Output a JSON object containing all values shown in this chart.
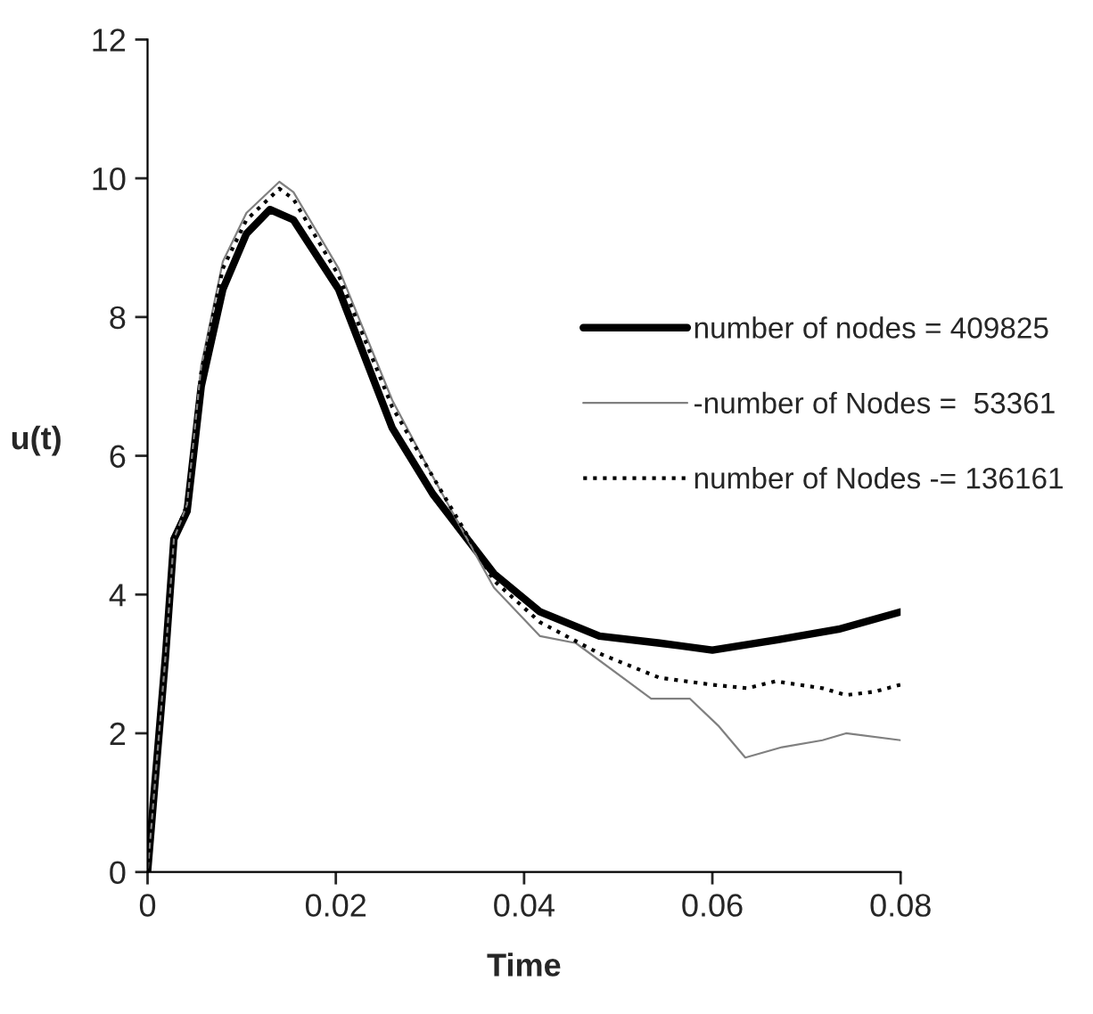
{
  "chart_data": {
    "type": "line",
    "xlabel": "Time",
    "ylabel": "u(t)",
    "xlim": [
      0,
      0.08
    ],
    "ylim": [
      0,
      12
    ],
    "xticks": [
      0,
      0.02,
      0.04,
      0.06,
      0.08
    ],
    "yticks": [
      0,
      2,
      4,
      6,
      8,
      10,
      12
    ],
    "grid": false,
    "legend": "right",
    "marker": "none",
    "series": [
      {
        "name": "number of nodes = 409825",
        "color": "#000000",
        "line_style": "solid",
        "x": [
          0,
          0.0019,
          0.0028,
          0.0042,
          0.0057,
          0.008,
          0.0105,
          0.013,
          0.0155,
          0.0203,
          0.026,
          0.0303,
          0.0368,
          0.0417,
          0.048,
          0.0544,
          0.06,
          0.067,
          0.0734,
          0.08
        ],
        "values": [
          0,
          3.1,
          4.8,
          5.2,
          7.0,
          8.4,
          9.2,
          9.55,
          9.4,
          8.4,
          6.4,
          5.45,
          4.3,
          3.75,
          3.4,
          3.3,
          3.2,
          3.35,
          3.5,
          3.75
        ]
      },
      {
        "name": "-number of Nodes =  53361",
        "color": "#808080",
        "line_style": "solid",
        "x": [
          0,
          0.0019,
          0.0028,
          0.0042,
          0.0057,
          0.008,
          0.0105,
          0.014,
          0.0155,
          0.0203,
          0.026,
          0.0303,
          0.0368,
          0.0417,
          0.0455,
          0.0535,
          0.0576,
          0.0607,
          0.0635,
          0.0674,
          0.0717,
          0.0742,
          0.08
        ],
        "values": [
          0,
          3.1,
          4.8,
          5.3,
          7.3,
          8.8,
          9.5,
          9.95,
          9.8,
          8.7,
          6.8,
          5.7,
          4.1,
          3.4,
          3.3,
          2.5,
          2.5,
          2.1,
          1.65,
          1.8,
          1.9,
          2.0,
          1.9
        ]
      },
      {
        "name": "number of Nodes -= 136161",
        "color": "#000000",
        "line_style": "dotted",
        "x": [
          0,
          0.0019,
          0.0028,
          0.0042,
          0.0057,
          0.008,
          0.0105,
          0.014,
          0.0155,
          0.0203,
          0.026,
          0.0303,
          0.0368,
          0.0417,
          0.048,
          0.0544,
          0.06,
          0.0637,
          0.0667,
          0.0717,
          0.0742,
          0.0772,
          0.08
        ],
        "values": [
          0,
          3.1,
          4.8,
          5.3,
          7.2,
          8.7,
          9.4,
          9.85,
          9.7,
          8.6,
          6.7,
          5.7,
          4.2,
          3.6,
          3.15,
          2.8,
          2.7,
          2.65,
          2.75,
          2.65,
          2.55,
          2.6,
          2.7
        ]
      }
    ]
  }
}
